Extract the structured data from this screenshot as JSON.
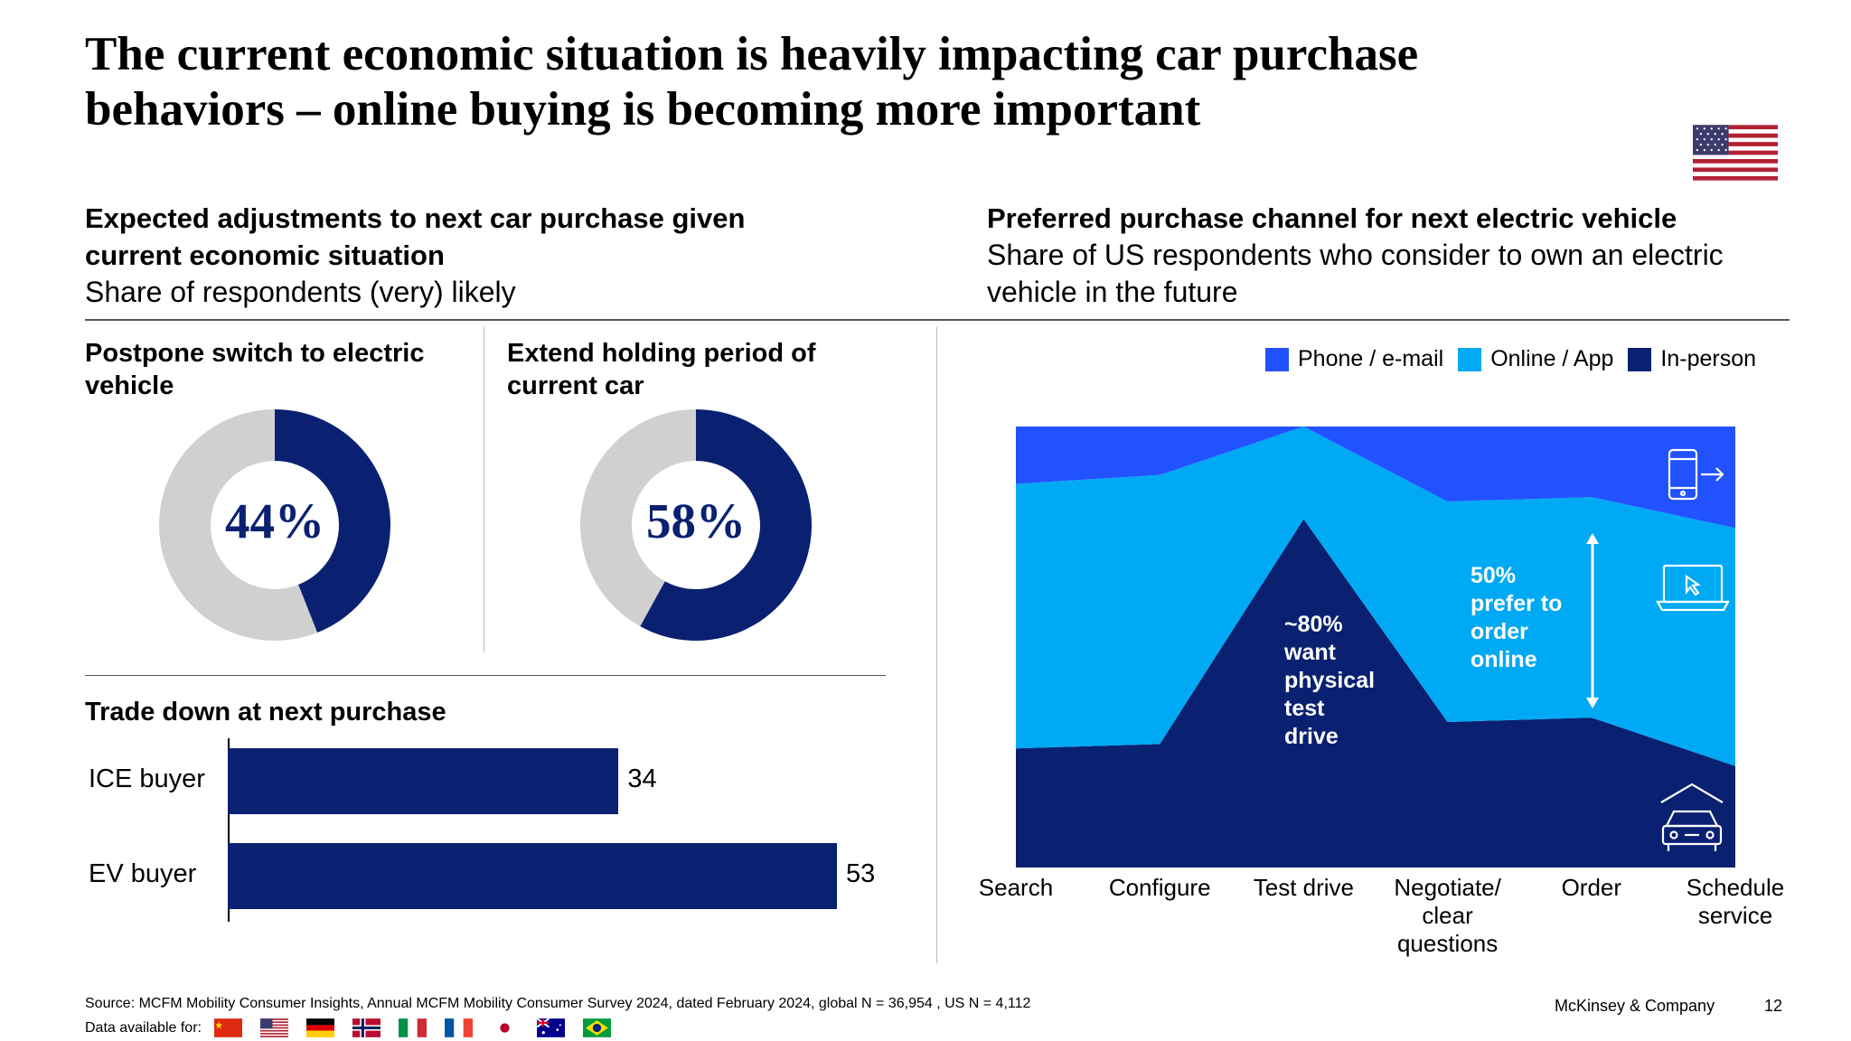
{
  "title": {
    "line1": "The current economic situation is heavily impacting car purchase",
    "line2": "behaviors – online buying is becoming more important"
  },
  "left_section": {
    "title_line1": "Expected adjustments to next car purchase given",
    "title_line2": "current economic situation",
    "subtitle": "Share of respondents (very) likely"
  },
  "right_section": {
    "title": "Preferred purchase channel for next electric vehicle",
    "subtitle_line1": "Share of US respondents who consider to own an electric",
    "subtitle_line2": "vehicle in the future"
  },
  "donut1": {
    "title_line1": "Postpone switch to electric",
    "title_line2": "vehicle",
    "label": "44%"
  },
  "donut2": {
    "title_line1": "Extend holding period of",
    "title_line2": "current car",
    "label": "58%"
  },
  "bars": {
    "title": "Trade down at next purchase"
  },
  "area": {
    "annot1": [
      "~80%",
      "want",
      "physical",
      "test",
      "drive"
    ],
    "annot2": [
      "50%",
      "prefer to",
      "order",
      "online"
    ],
    "xcats": [
      [
        "Search"
      ],
      [
        "Configure"
      ],
      [
        "Test drive"
      ],
      [
        "Negotiate/",
        "clear",
        "questions"
      ],
      [
        "Order"
      ],
      [
        "Schedule",
        "service"
      ]
    ]
  },
  "footer": {
    "source": "Source: MCFM Mobility Consumer Insights, Annual MCFM Mobility Consumer Survey 2024, dated February 2024, global N = 36,954 , US N = 4,112",
    "data_available": "Data available for:",
    "company": "McKinsey & Company",
    "page": "12"
  },
  "colors": {
    "navy": "#0a2172",
    "blue": "#2251ff",
    "cyan": "#00a9f4",
    "gray": "#d0d0d0"
  },
  "icons": [
    "phone-email-icon",
    "laptop-online-icon",
    "car-garage-icon",
    "double-arrow-icon"
  ],
  "chart_data": [
    {
      "type": "pie",
      "subtype": "donut",
      "title": "Postpone switch to electric vehicle",
      "slices": [
        {
          "label": "likely",
          "value": 44,
          "color": "#0a2172"
        },
        {
          "label": "other",
          "value": 56,
          "color": "#d0d0d0"
        }
      ]
    },
    {
      "type": "pie",
      "subtype": "donut",
      "title": "Extend holding period of current car",
      "slices": [
        {
          "label": "likely",
          "value": 58,
          "color": "#0a2172"
        },
        {
          "label": "other",
          "value": 42,
          "color": "#d0d0d0"
        }
      ]
    },
    {
      "type": "bar",
      "orientation": "horizontal",
      "title": "Trade down at next purchase",
      "categories": [
        "ICE buyer",
        "EV buyer"
      ],
      "values": [
        34,
        53
      ],
      "xlim": [
        0,
        53
      ]
    },
    {
      "type": "area",
      "stacked": true,
      "normalized": true,
      "categories": [
        "Search",
        "Configure",
        "Test drive",
        "Negotiate/ clear questions",
        "Order",
        "Schedule service"
      ],
      "series": [
        {
          "name": "In-person",
          "color": "#0a2172",
          "values": [
            27,
            28,
            79,
            33,
            34,
            23
          ]
        },
        {
          "name": "Online / App",
          "color": "#00a9f4",
          "values": [
            60,
            61,
            21,
            50,
            50,
            54
          ]
        },
        {
          "name": "Phone / e-mail",
          "color": "#2251ff",
          "values": [
            13,
            11,
            0,
            17,
            16,
            23
          ]
        }
      ],
      "ylim": [
        0,
        100
      ],
      "legend_position": "top-right"
    }
  ]
}
